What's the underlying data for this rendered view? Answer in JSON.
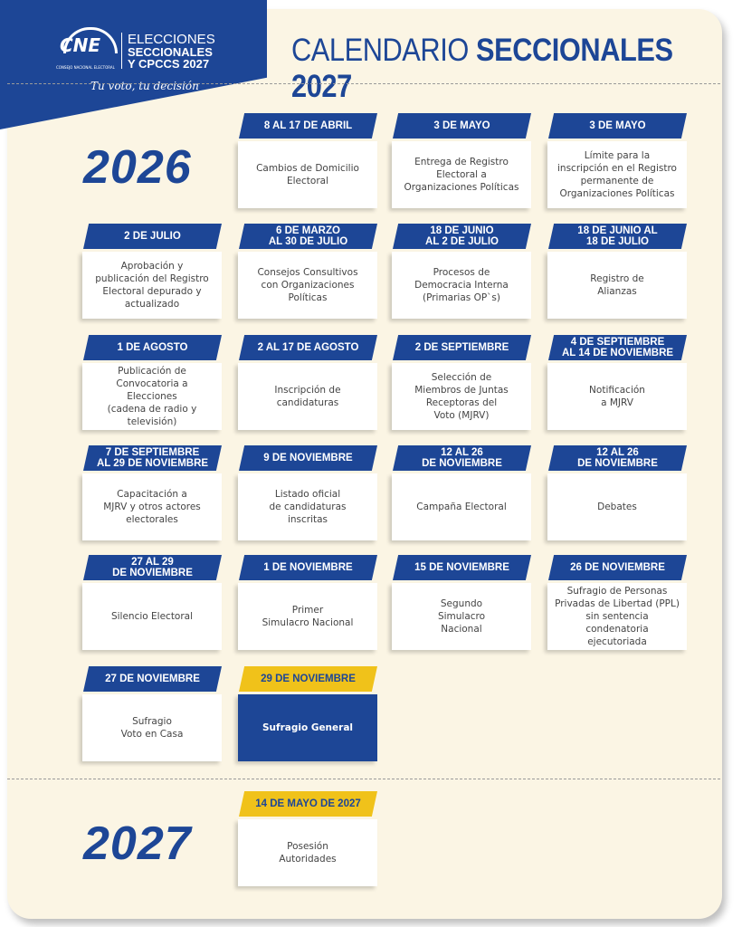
{
  "logo": {
    "acronym": "CNE",
    "org": "CONSEJO NACIONAL ELECTORAL",
    "line1": "ELECCIONES",
    "line2": "SECCIONALES",
    "line3": "Y CPCCS 2027",
    "slogan": "Tu voto, tu decisión"
  },
  "title": {
    "light": "CALENDARIO",
    "bold": "SECCIONALES 2027"
  },
  "colors": {
    "blue": "#1d4696",
    "yellow": "#f0c21a",
    "background": "#fbf5e4"
  },
  "y2026": {
    "label": "2026",
    "rows": [
      [
        {
          "date": "8 AL 17 DE ABRIL",
          "text": "Cambios de Domicilio\nElectoral"
        },
        {
          "date": "3 DE MAYO",
          "text": "Entrega de Registro\nElectoral a\nOrganizaciones Políticas"
        },
        {
          "date": "3 DE MAYO",
          "text": "Límite para la\ninscripción en el Registro\npermanente de\nOrganizaciones Políticas"
        }
      ],
      [
        {
          "date": "2 DE JULIO",
          "text": "Aprobación y\npublicación del Registro\nElectoral depurado y\nactualizado"
        },
        {
          "date": "6 DE MARZO\nAL 30 DE JULIO",
          "text": "Consejos Consultivos\ncon Organizaciones\nPolíticas"
        },
        {
          "date": "18 DE JUNIO\nAL 2 DE JULIO",
          "text": "Procesos de\nDemocracia Interna\n(Primarias OP`s)"
        },
        {
          "date": "18 DE  JUNIO AL\n18 DE JULIO",
          "text": "Registro de\nAlianzas"
        }
      ],
      [
        {
          "date": "1 DE AGOSTO",
          "text": "Publicación de\nConvocatoria a Elecciones\n(cadena de radio y\ntelevisión)"
        },
        {
          "date": "2 AL 17 DE AGOSTO",
          "text": "Inscripción de\ncandidaturas"
        },
        {
          "date": "2 DE SEPTIEMBRE",
          "text": "Selección de\nMiembros de Juntas\nReceptoras del\nVoto (MJRV)"
        },
        {
          "date": "4 DE SEPTIEMBRE\nAL 14 DE NOVIEMBRE",
          "text": "Notificación\na MJRV"
        }
      ],
      [
        {
          "date": "7 DE SEPTIEMBRE\nAL 29 DE NOVIEMBRE",
          "text": "Capacitación a\nMJRV y otros actores\nelectorales"
        },
        {
          "date": "9 DE NOVIEMBRE",
          "text": "Listado oficial\nde candidaturas\ninscritas"
        },
        {
          "date": "12 AL 26\nDE NOVIEMBRE",
          "text": "Campaña Electoral"
        },
        {
          "date": "12 AL 26\nDE NOVIEMBRE",
          "text": "Debates"
        }
      ],
      [
        {
          "date": "27 AL 29\nDE NOVIEMBRE",
          "text": "Silencio Electoral"
        },
        {
          "date": "1 DE NOVIEMBRE",
          "text": "Primer\nSimulacro Nacional"
        },
        {
          "date": "15 DE NOVIEMBRE",
          "text": "Segundo\nSimulacro\nNacional"
        },
        {
          "date": "26 DE NOVIEMBRE",
          "text": "Sufragio de Personas\nPrivadas de Libertad (PPL)\nsin sentencia condenatoria\nejecutoriada"
        }
      ],
      [
        {
          "date": "27 DE NOVIEMBRE",
          "text": "Sufragio\nVoto en Casa"
        },
        {
          "date": "29 DE NOVIEMBRE",
          "text": "Sufragio General",
          "highlight": true
        }
      ]
    ]
  },
  "y2027": {
    "label": "2027",
    "rows": [
      [
        {
          "date": "14 DE MAYO DE 2027",
          "text": "Posesión\nAutoridades",
          "highlight_date": true
        }
      ]
    ]
  }
}
